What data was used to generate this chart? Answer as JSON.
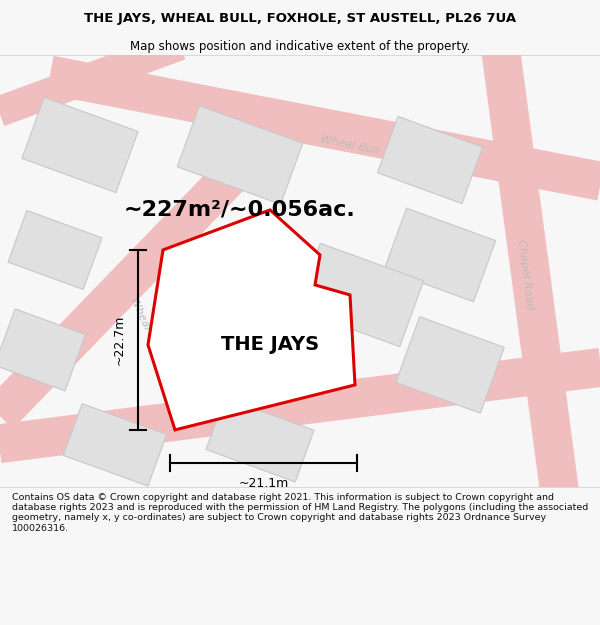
{
  "title_line1": "THE JAYS, WHEAL BULL, FOXHOLE, ST AUSTELL, PL26 7UA",
  "title_line2": "Map shows position and indicative extent of the property.",
  "area_label": "~227m²/~0.056ac.",
  "property_label": "THE JAYS",
  "width_label": "~21.1m",
  "height_label": "~22.7m",
  "footer_text": "Contains OS data © Crown copyright and database right 2021. This information is subject to Crown copyright and database rights 2023 and is reproduced with the permission of HM Land Registry. The polygons (including the associated geometry, namely x, y co-ordinates) are subject to Crown copyright and database rights 2023 Ordnance Survey 100026316.",
  "bg_color": "#f7f7f7",
  "map_bg_color": "#ffffff",
  "road_color": "#f2c4c4",
  "road_edge_color": "#e8a0a0",
  "building_fill": "#e0e0e0",
  "building_edge": "#c8c8c8",
  "property_fill": "#ffffff",
  "property_edge": "#dd0000",
  "road_label_color": "#bbbbbb",
  "title_color": "#000000",
  "footer_color": "#111111",
  "title_fontsize": 9.5,
  "subtitle_fontsize": 8.5,
  "area_fontsize": 16,
  "property_fontsize": 14,
  "dim_fontsize": 9,
  "road_label_fontsize": 8,
  "footer_fontsize": 6.8
}
